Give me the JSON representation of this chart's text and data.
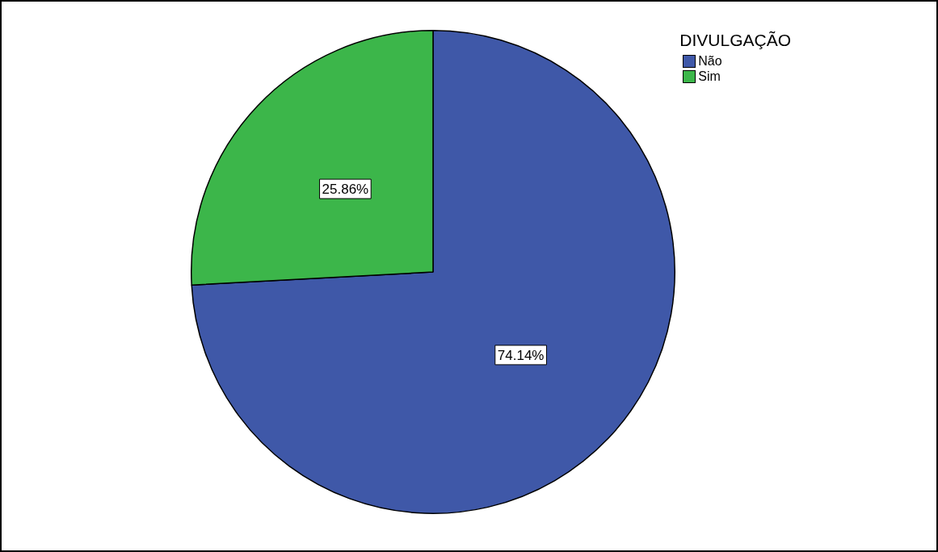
{
  "chart_data": {
    "type": "pie",
    "legend_title": "DIVULGAÇÃO",
    "legend": "top right",
    "value_labels": [
      "74.14%",
      "25.86%"
    ],
    "categories": [
      "Não",
      "Sim"
    ],
    "values": [
      74.14,
      25.86
    ],
    "colors": [
      "#3f58a8",
      "#3cb64a"
    ]
  }
}
